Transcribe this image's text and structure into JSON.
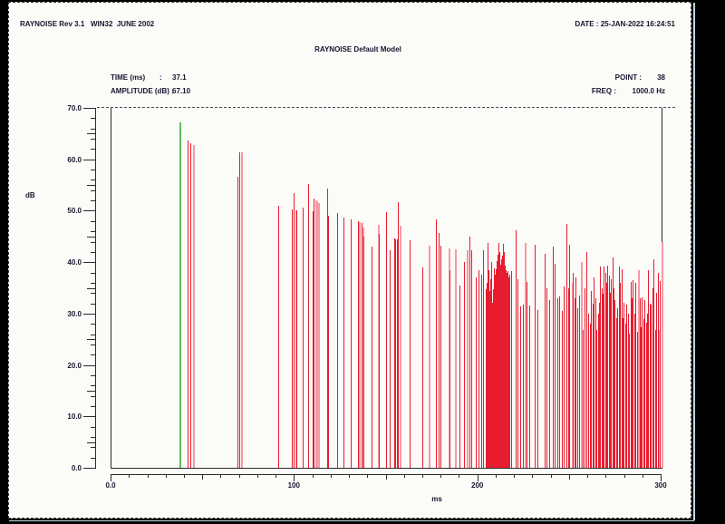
{
  "header": {
    "app_version": "RAYNOISE Rev 3.1   WIN32  JUNE 2002",
    "date_label": "DATE : 25-JAN-2022 16:24:51"
  },
  "plot_header": {
    "title": "RAYNOISE Default Model",
    "time_label": "TIME (ms)",
    "time_colon": ":",
    "time_value": "37.1",
    "amplitude_label": "AMPLITUDE (dB) :",
    "amplitude_value": "67.10",
    "point_label": "POINT :",
    "point_value": "38",
    "freq_label": "FREQ :",
    "freq_value": "1000.0 Hz"
  },
  "chart_data": {
    "type": "bar",
    "subtype": "impulse-echogram",
    "title": "RAYNOISE Default Model",
    "xlabel": "ms",
    "ylabel": "dB",
    "xlim": [
      0,
      300
    ],
    "ylim": [
      0,
      70
    ],
    "grid": false,
    "xticks": [
      {
        "v": 0,
        "label": "0.0"
      },
      {
        "v": 100,
        "label": "100"
      },
      {
        "v": 200,
        "label": "200"
      },
      {
        "v": 300,
        "label": "300"
      }
    ],
    "yticks": [
      {
        "v": 70,
        "label": "70.0"
      },
      {
        "v": 60,
        "label": "60.0"
      },
      {
        "v": 50,
        "label": "50.0"
      },
      {
        "v": 40,
        "label": "40.0"
      },
      {
        "v": 30,
        "label": "30.0"
      },
      {
        "v": 20,
        "label": "20.0"
      },
      {
        "v": 10,
        "label": "10.0"
      },
      {
        "v": 0,
        "label": "0.0"
      }
    ],
    "cursor": {
      "time_ms": 37.1,
      "amplitude_db": 67.1,
      "color": "#5dbd5d"
    },
    "colors": {
      "red": "#e81c30",
      "pink": "#f59aa6"
    },
    "impulses": [
      [
        41.3,
        63.7,
        "r"
      ],
      [
        42.8,
        63.1,
        "r"
      ],
      [
        44.3,
        62.8,
        "p"
      ],
      [
        68.7,
        56.6,
        "r"
      ],
      [
        69.7,
        61.3,
        "r"
      ],
      [
        70.5,
        61.3,
        "p"
      ],
      [
        91.0,
        51.0,
        "r"
      ],
      [
        98.5,
        50.3,
        "r"
      ],
      [
        99.3,
        53.5,
        "r"
      ],
      [
        100.3,
        50.1,
        "p"
      ],
      [
        101.0,
        50.0,
        "r"
      ],
      [
        104.5,
        50.6,
        "r"
      ],
      [
        107.0,
        55.2,
        "r"
      ],
      [
        109.5,
        49.9,
        "r"
      ],
      [
        110.2,
        52.4,
        "r"
      ],
      [
        111.0,
        52.0,
        "p"
      ],
      [
        111.8,
        51.8,
        "p"
      ],
      [
        112.5,
        51.5,
        "p"
      ],
      [
        117.4,
        54.3,
        "r"
      ],
      [
        118.1,
        49.0,
        "r"
      ],
      [
        122.9,
        49.6,
        "r"
      ],
      [
        126.4,
        48.7,
        "r"
      ],
      [
        130.3,
        48.3,
        "r"
      ],
      [
        134.3,
        48.0,
        "r"
      ],
      [
        135.0,
        47.8,
        "p"
      ],
      [
        136.3,
        47.6,
        "r"
      ],
      [
        137.0,
        46.8,
        "p"
      ],
      [
        137.6,
        45.0,
        "r"
      ],
      [
        141.8,
        43.0,
        "r"
      ],
      [
        145.3,
        47.3,
        "p"
      ],
      [
        145.9,
        45.5,
        "r"
      ],
      [
        149.8,
        49.8,
        "r"
      ],
      [
        151.7,
        42.3,
        "r"
      ],
      [
        154.3,
        44.6,
        "r"
      ],
      [
        154.9,
        44.5,
        "r"
      ],
      [
        155.5,
        44.4,
        "r"
      ],
      [
        156.3,
        51.7,
        "r"
      ],
      [
        156.9,
        47.1,
        "p"
      ],
      [
        162.7,
        44.3,
        "r"
      ],
      [
        169.7,
        39.0,
        "r"
      ],
      [
        173.1,
        43.2,
        "p"
      ],
      [
        177.1,
        48.3,
        "r"
      ],
      [
        178.6,
        45.7,
        "r"
      ],
      [
        179.6,
        43.2,
        "r"
      ],
      [
        183.6,
        42.7,
        "p"
      ],
      [
        184.2,
        38.4,
        "r"
      ],
      [
        187.1,
        42.5,
        "p"
      ],
      [
        190.0,
        35.4,
        "r"
      ],
      [
        192.0,
        40.0,
        "r"
      ],
      [
        193.5,
        42.3,
        "p"
      ],
      [
        195.0,
        45.0,
        "r"
      ],
      [
        196.0,
        42.3,
        "r"
      ],
      [
        198.5,
        37.0,
        "r"
      ],
      [
        200.0,
        38.4,
        "r"
      ],
      [
        201.5,
        37.6,
        "r"
      ],
      [
        202.5,
        42.3,
        "r"
      ],
      [
        204.0,
        34.7,
        "r"
      ],
      [
        204.6,
        36.0,
        "r"
      ],
      [
        205.1,
        43.7,
        "r"
      ],
      [
        205.6,
        38.5,
        "r"
      ],
      [
        206.1,
        34.4,
        "r"
      ],
      [
        206.6,
        36.7,
        "r"
      ],
      [
        207.1,
        40.0,
        "r"
      ],
      [
        207.6,
        32.1,
        "r"
      ],
      [
        208.1,
        34.7,
        "r"
      ],
      [
        208.6,
        38.8,
        "r"
      ],
      [
        209.1,
        37.5,
        "r"
      ],
      [
        209.6,
        38.6,
        "r"
      ],
      [
        210.1,
        40.2,
        "r"
      ],
      [
        210.6,
        41.5,
        "r"
      ],
      [
        211.1,
        43.7,
        "r"
      ],
      [
        211.6,
        42.0,
        "r"
      ],
      [
        212.1,
        39.5,
        "r"
      ],
      [
        212.6,
        40.5,
        "r"
      ],
      [
        213.1,
        41.3,
        "r"
      ],
      [
        213.6,
        43.6,
        "r"
      ],
      [
        214.1,
        42.0,
        "r"
      ],
      [
        214.6,
        39.3,
        "r"
      ],
      [
        215.1,
        38.4,
        "r"
      ],
      [
        215.6,
        38.0,
        "r"
      ],
      [
        216.1,
        38.3,
        "r"
      ],
      [
        216.6,
        37.0,
        "r"
      ],
      [
        217.1,
        37.6,
        "r"
      ],
      [
        217.7,
        38.3,
        "r"
      ],
      [
        220.4,
        46.2,
        "r"
      ],
      [
        221.4,
        36.7,
        "r"
      ],
      [
        222.9,
        31.4,
        "r"
      ],
      [
        224.4,
        31.7,
        "r"
      ],
      [
        225.4,
        43.7,
        "p"
      ],
      [
        226.4,
        36.2,
        "r"
      ],
      [
        227.9,
        31.6,
        "r"
      ],
      [
        230.8,
        43.4,
        "r"
      ],
      [
        232.3,
        30.7,
        "r"
      ],
      [
        236.3,
        41.6,
        "r"
      ],
      [
        237.3,
        34.9,
        "r"
      ],
      [
        238.8,
        32.6,
        "r"
      ],
      [
        240.8,
        43.0,
        "r"
      ],
      [
        241.8,
        39.7,
        "r"
      ],
      [
        243.0,
        33.0,
        "r"
      ],
      [
        244.3,
        33.3,
        "r"
      ],
      [
        245.5,
        30.5,
        "r"
      ],
      [
        246.8,
        35.3,
        "r"
      ],
      [
        248.3,
        47.4,
        "r"
      ],
      [
        249.0,
        35.0,
        "r"
      ],
      [
        249.8,
        43.4,
        "r"
      ],
      [
        250.8,
        36.0,
        "p"
      ],
      [
        251.7,
        37.9,
        "r"
      ],
      [
        252.4,
        33.0,
        "r"
      ],
      [
        253.2,
        37.0,
        "r"
      ],
      [
        254.2,
        31.0,
        "r"
      ],
      [
        255.2,
        33.5,
        "r"
      ],
      [
        256.2,
        40.0,
        "p"
      ],
      [
        257.2,
        26.8,
        "r"
      ],
      [
        258.2,
        35.0,
        "r"
      ],
      [
        259.2,
        42.0,
        "r"
      ],
      [
        260.0,
        30.0,
        "r"
      ],
      [
        260.8,
        28.0,
        "r"
      ],
      [
        261.6,
        34.4,
        "r"
      ],
      [
        262.3,
        32.0,
        "r"
      ],
      [
        263.1,
        37.0,
        "r"
      ],
      [
        263.8,
        33.0,
        "r"
      ],
      [
        264.5,
        26.8,
        "r"
      ],
      [
        265.2,
        30.0,
        "r"
      ],
      [
        265.8,
        32.1,
        "r"
      ],
      [
        266.5,
        39.2,
        "r"
      ],
      [
        267.2,
        35.0,
        "r"
      ],
      [
        267.8,
        33.9,
        "r"
      ],
      [
        268.5,
        39.2,
        "r"
      ],
      [
        269.2,
        37.9,
        "r"
      ],
      [
        269.9,
        36.0,
        "r"
      ],
      [
        270.5,
        39.3,
        "r"
      ],
      [
        271.2,
        37.4,
        "r"
      ],
      [
        271.9,
        34.0,
        "r"
      ],
      [
        272.5,
        36.7,
        "r"
      ],
      [
        273.2,
        40.9,
        "r"
      ],
      [
        273.9,
        35.0,
        "r"
      ],
      [
        274.5,
        32.6,
        "r"
      ],
      [
        275.2,
        29.1,
        "r"
      ],
      [
        275.9,
        31.0,
        "r"
      ],
      [
        276.6,
        39.2,
        "r"
      ],
      [
        277.3,
        36.0,
        "r"
      ],
      [
        278.0,
        38.6,
        "r"
      ],
      [
        278.7,
        29.1,
        "r"
      ],
      [
        279.4,
        32.1,
        "r"
      ],
      [
        280.1,
        28.0,
        "r"
      ],
      [
        280.8,
        31.7,
        "r"
      ],
      [
        281.6,
        30.0,
        "r"
      ],
      [
        282.3,
        26.1,
        "r"
      ],
      [
        283.0,
        36.2,
        "r"
      ],
      [
        283.7,
        33.0,
        "r"
      ],
      [
        284.4,
        36.5,
        "r"
      ],
      [
        285.1,
        30.0,
        "r"
      ],
      [
        285.8,
        36.0,
        "r"
      ],
      [
        286.5,
        26.5,
        "r"
      ],
      [
        287.2,
        38.4,
        "p"
      ],
      [
        287.9,
        33.0,
        "r"
      ],
      [
        288.6,
        27.3,
        "r"
      ],
      [
        289.3,
        33.2,
        "r"
      ],
      [
        290.0,
        29.0,
        "r"
      ],
      [
        290.7,
        32.6,
        "r"
      ],
      [
        291.4,
        28.2,
        "r"
      ],
      [
        292.1,
        30.0,
        "r"
      ],
      [
        292.8,
        38.4,
        "r"
      ],
      [
        293.5,
        32.0,
        "r"
      ],
      [
        294.2,
        31.7,
        "r"
      ],
      [
        295.0,
        35.0,
        "r"
      ],
      [
        295.7,
        40.6,
        "r"
      ],
      [
        296.4,
        26.8,
        "r"
      ],
      [
        297.1,
        34.0,
        "r"
      ],
      [
        297.8,
        37.9,
        "r"
      ],
      [
        298.5,
        26.8,
        "p"
      ],
      [
        299.2,
        36.4,
        "r"
      ],
      [
        300.0,
        44.0,
        "p"
      ]
    ]
  }
}
